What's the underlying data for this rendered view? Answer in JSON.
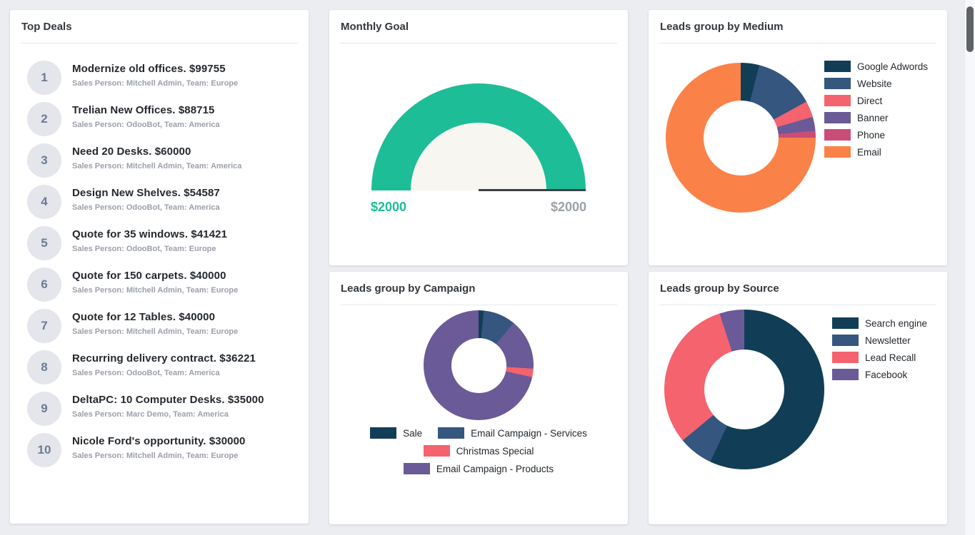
{
  "top_deals": {
    "title": "Top Deals",
    "deals": [
      {
        "rank": "1",
        "title": "Modernize old offices. $99755",
        "subtitle": "Sales Person: Mitchell Admin,  Team: Europe"
      },
      {
        "rank": "2",
        "title": "Trelian New Offices. $88715",
        "subtitle": "Sales Person: OdooBot,  Team: America"
      },
      {
        "rank": "3",
        "title": "Need 20 Desks. $60000",
        "subtitle": "Sales Person: Mitchell Admin,  Team: America"
      },
      {
        "rank": "4",
        "title": "Design New Shelves. $54587",
        "subtitle": "Sales Person: OdooBot,  Team: America"
      },
      {
        "rank": "5",
        "title": "Quote for 35 windows. $41421",
        "subtitle": "Sales Person: OdooBot,  Team: Europe"
      },
      {
        "rank": "6",
        "title": "Quote for 150 carpets. $40000",
        "subtitle": "Sales Person: Mitchell Admin,  Team: Europe"
      },
      {
        "rank": "7",
        "title": "Quote for 12 Tables. $40000",
        "subtitle": "Sales Person: Mitchell Admin,  Team: Europe"
      },
      {
        "rank": "8",
        "title": "Recurring delivery contract. $36221",
        "subtitle": "Sales Person: OdooBot,  Team: America"
      },
      {
        "rank": "9",
        "title": "DeltaPC: 10 Computer Desks. $35000",
        "subtitle": "Sales Person: Marc Demo,  Team: America"
      },
      {
        "rank": "10",
        "title": "Nicole Ford's opportunity. $30000",
        "subtitle": "Sales Person: Mitchell Admin,  Team: Europe"
      }
    ]
  },
  "monthly_goal": {
    "title": "Monthly Goal",
    "current_label": "$2000",
    "target_label": "$2000",
    "chart_data": {
      "type": "gauge",
      "title": "Monthly Goal",
      "value": 2000,
      "min": 0,
      "max": 2000,
      "percent": 100,
      "value_label": "$2000",
      "max_label": "$2000",
      "color": "#1dbd97"
    }
  },
  "medium": {
    "title": "Leads group by Medium",
    "chart_data": {
      "type": "pie",
      "title": "Leads group by Medium",
      "categories": [
        "Google Adwords",
        "Website",
        "Direct",
        "Banner",
        "Phone",
        "Email"
      ],
      "values_pct": [
        4,
        13,
        3.5,
        3,
        1.5,
        75
      ],
      "colors": [
        "#113e56",
        "#35567e",
        "#f4636e",
        "#6a5a97",
        "#c94d76",
        "#fa8248"
      ],
      "legend_position": "right"
    },
    "segments": [
      {
        "color": "#113e56",
        "pct": 4
      },
      {
        "color": "#35567e",
        "pct": 13
      },
      {
        "color": "#f4636e",
        "pct": 3.5
      },
      {
        "color": "#6a5a97",
        "pct": 3
      },
      {
        "color": "#c94d76",
        "pct": 1.5
      },
      {
        "color": "#fa8248",
        "pct": 75
      }
    ]
  },
  "campaign": {
    "title": "Leads group by Campaign",
    "chart_data": {
      "type": "pie",
      "title": "Leads group by Campaign",
      "categories": [
        "Sale",
        "Email Campaign - Services",
        "Christmas Special",
        "Email Campaign - Products"
      ],
      "values_pct": [
        1.5,
        9.5,
        2.5,
        86.5
      ],
      "colors": [
        "#113e56",
        "#35567e",
        "#f4636e",
        "#6a5a97"
      ],
      "legend_position": "bottom"
    },
    "segments": [
      {
        "color": "#113e56",
        "pct": 1.5
      },
      {
        "color": "#35567e",
        "pct": 9.5
      },
      {
        "color": "#6a5a97",
        "pct": 15
      },
      {
        "color": "#f4636e",
        "pct": 2.5
      },
      {
        "color": "#6a5a97",
        "pct": 71.5
      }
    ]
  },
  "source": {
    "title": "Leads group by Source",
    "chart_data": {
      "type": "pie",
      "title": "Leads group by Source",
      "categories": [
        "Search engine",
        "Newsletter",
        "Lead Recall",
        "Facebook"
      ],
      "values_pct": [
        57,
        7,
        31,
        5
      ],
      "colors": [
        "#113e56",
        "#35567e",
        "#f4636e",
        "#6a5a97"
      ],
      "legend_position": "right"
    },
    "segments": [
      {
        "color": "#113e56",
        "pct": 57
      },
      {
        "color": "#35567e",
        "pct": 7
      },
      {
        "color": "#f4636e",
        "pct": 31
      },
      {
        "color": "#6a5a97",
        "pct": 5
      }
    ]
  }
}
